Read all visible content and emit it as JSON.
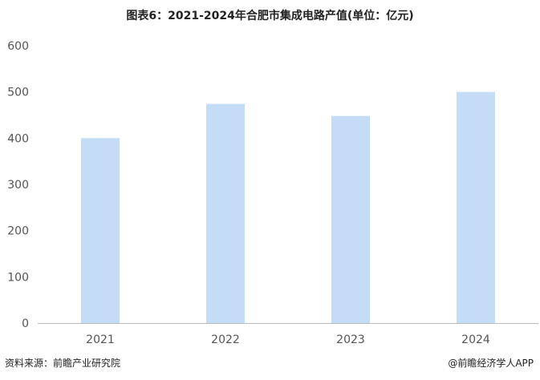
{
  "chart_data": {
    "type": "bar",
    "title": "图表6：2021-2024年合肥市集成电路产值(单位：亿元)",
    "categories": [
      "2021",
      "2022",
      "2023",
      "2024"
    ],
    "values": [
      400,
      474,
      448,
      500
    ],
    "ylim": [
      0,
      600
    ],
    "yticks": [
      0,
      100,
      200,
      300,
      400,
      500,
      600
    ],
    "xlabel": "",
    "ylabel": "",
    "grid": false,
    "bar_color": "#c5dcf7"
  },
  "footer": {
    "source": "资料来源：前瞻产业研究院",
    "brand": "@前瞻经济学人APP"
  }
}
